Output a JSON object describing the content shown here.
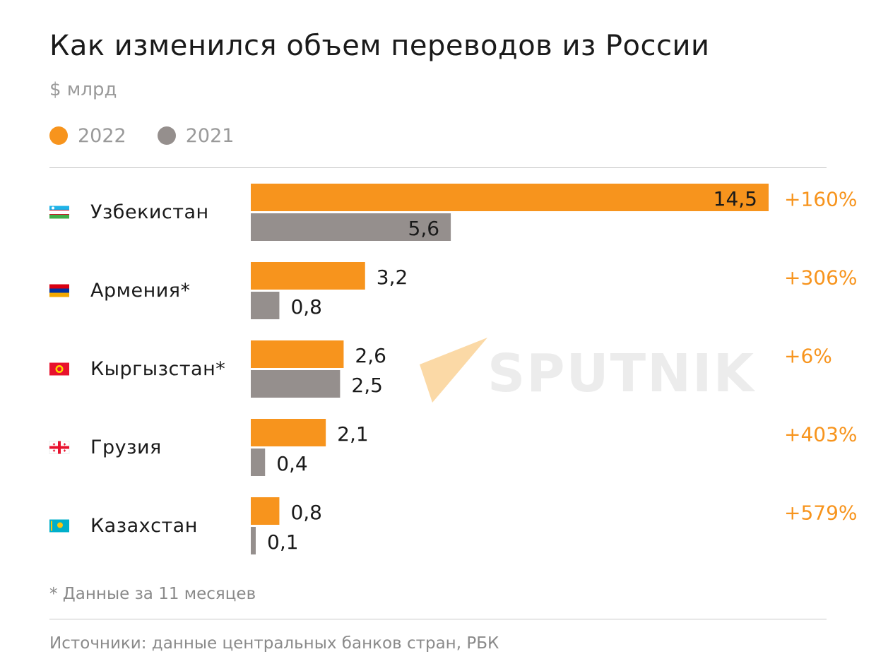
{
  "title": "Как изменился объем переводов из России",
  "unit": "$ млрд",
  "legend": [
    {
      "label": "2022",
      "color": "#f7941d"
    },
    {
      "label": "2021",
      "color": "#958f8d"
    }
  ],
  "colors": {
    "accent": "#f7941d",
    "secondary": "#958f8d",
    "text": "#1a1a1a",
    "muted": "#9a9a9a"
  },
  "chart_data": {
    "type": "bar",
    "orientation": "horizontal",
    "categories": [
      "Узбекистан",
      "Армения*",
      "Кыргызстан*",
      "Грузия",
      "Казахстан"
    ],
    "flags": [
      "uzbekistan-flag-icon",
      "armenia-flag-icon",
      "kyrgyzstan-flag-icon",
      "georgia-flag-icon",
      "kazakhstan-flag-icon"
    ],
    "series": [
      {
        "name": "2022",
        "values": [
          14.5,
          3.2,
          2.6,
          2.1,
          0.8
        ],
        "labels": [
          "14,5",
          "3,2",
          "2,6",
          "2,1",
          "0,8"
        ]
      },
      {
        "name": "2021",
        "values": [
          5.6,
          0.8,
          2.5,
          0.4,
          0.1
        ],
        "labels": [
          "5,6",
          "0,8",
          "2,5",
          "0,4",
          "0,1"
        ]
      }
    ],
    "changes": [
      "+160%",
      "+306%",
      "+6%",
      "+403%",
      "+579%"
    ],
    "xlim": [
      0,
      14.5
    ],
    "grid": false,
    "legend_position": "top-left"
  },
  "watermark": "SPUTNIK",
  "footnote": "*  Данные за 11 месяцев",
  "source": "Источники: данные центральных банков стран, РБК"
}
